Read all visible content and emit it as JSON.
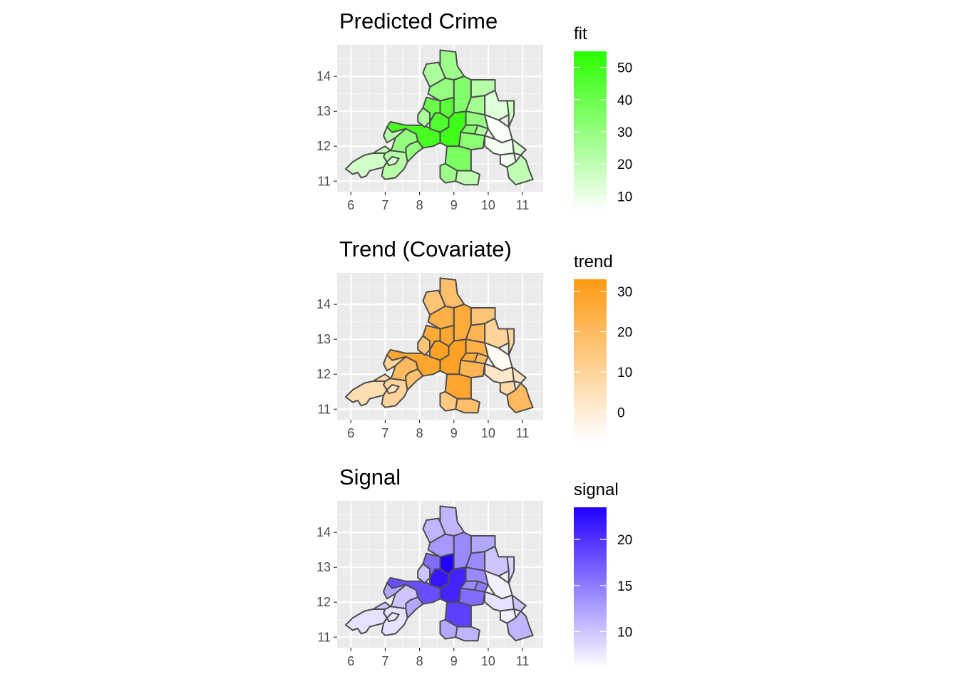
{
  "chart_data": [
    {
      "type": "choropleth",
      "title": "Predicted Crime",
      "fill_variable": "fit",
      "palette": {
        "low": "#ffffff",
        "high": "#2aff00"
      },
      "legend": {
        "title": "fit",
        "range": [
          5,
          55
        ],
        "ticks": [
          10,
          20,
          30,
          40,
          50
        ]
      },
      "x_axis": {
        "range": [
          5.6,
          11.6
        ],
        "ticks": [
          6,
          7,
          8,
          9,
          10,
          11
        ]
      },
      "y_axis": {
        "range": [
          10.7,
          14.9
        ],
        "ticks": [
          11,
          12,
          13,
          14
        ]
      },
      "regions": [
        {
          "id": "r01",
          "value": 22
        },
        {
          "id": "r02",
          "value": 16
        },
        {
          "id": "r03",
          "value": 20
        },
        {
          "id": "r04",
          "value": 14
        },
        {
          "id": "r05",
          "value": 30
        },
        {
          "id": "r06",
          "value": 48
        },
        {
          "id": "r07",
          "value": 30
        },
        {
          "id": "r08",
          "value": 22
        },
        {
          "id": "r09",
          "value": 24
        },
        {
          "id": "r10",
          "value": 40
        },
        {
          "id": "r11",
          "value": 46
        },
        {
          "id": "r12",
          "value": 44
        },
        {
          "id": "r13",
          "value": 30
        },
        {
          "id": "r14",
          "value": 34
        },
        {
          "id": "r15",
          "value": 50
        },
        {
          "id": "r16",
          "value": 28
        },
        {
          "id": "r17",
          "value": 24
        },
        {
          "id": "r18",
          "value": 22
        },
        {
          "id": "r19",
          "value": 12
        },
        {
          "id": "r20",
          "value": 26
        },
        {
          "id": "r21",
          "value": 30
        },
        {
          "id": "r22",
          "value": 34
        },
        {
          "id": "r23",
          "value": 24
        },
        {
          "id": "r24",
          "value": 32
        },
        {
          "id": "r25",
          "value": 36
        },
        {
          "id": "r26",
          "value": 28
        },
        {
          "id": "r27",
          "value": 20
        },
        {
          "id": "r28",
          "value": 6
        },
        {
          "id": "r29",
          "value": 18
        },
        {
          "id": "r30",
          "value": 8
        },
        {
          "id": "r31",
          "value": 14
        },
        {
          "id": "r32",
          "value": 8
        },
        {
          "id": "r33",
          "value": 20
        }
      ]
    },
    {
      "type": "choropleth",
      "title": "Trend (Covariate)",
      "fill_variable": "trend",
      "palette": {
        "low": "#ffffff",
        "high": "#ff9912"
      },
      "legend": {
        "title": "trend",
        "range": [
          -7,
          33
        ],
        "ticks": [
          0,
          10,
          20,
          30
        ]
      },
      "x_axis": {
        "range": [
          5.6,
          11.6
        ],
        "ticks": [
          6,
          7,
          8,
          9,
          10,
          11
        ]
      },
      "y_axis": {
        "range": [
          10.7,
          14.9
        ],
        "ticks": [
          11,
          12,
          13,
          14
        ]
      },
      "regions": [
        {
          "id": "r01",
          "value": 10
        },
        {
          "id": "r02",
          "value": 6
        },
        {
          "id": "r03",
          "value": 8
        },
        {
          "id": "r04",
          "value": 4
        },
        {
          "id": "r05",
          "value": 18
        },
        {
          "id": "r06",
          "value": 28
        },
        {
          "id": "r07",
          "value": 20
        },
        {
          "id": "r08",
          "value": 10
        },
        {
          "id": "r09",
          "value": 16
        },
        {
          "id": "r10",
          "value": 26
        },
        {
          "id": "r11",
          "value": 30
        },
        {
          "id": "r12",
          "value": 28
        },
        {
          "id": "r13",
          "value": 24
        },
        {
          "id": "r14",
          "value": 26
        },
        {
          "id": "r15",
          "value": 30
        },
        {
          "id": "r16",
          "value": 18
        },
        {
          "id": "r17",
          "value": 16
        },
        {
          "id": "r18",
          "value": 16
        },
        {
          "id": "r19",
          "value": 10
        },
        {
          "id": "r20",
          "value": 22
        },
        {
          "id": "r21",
          "value": 24
        },
        {
          "id": "r22",
          "value": 26
        },
        {
          "id": "r23",
          "value": 20
        },
        {
          "id": "r24",
          "value": 22
        },
        {
          "id": "r25",
          "value": 28
        },
        {
          "id": "r26",
          "value": 14
        },
        {
          "id": "r27",
          "value": 18
        },
        {
          "id": "r28",
          "value": -5
        },
        {
          "id": "r29",
          "value": 10
        },
        {
          "id": "r30",
          "value": 2
        },
        {
          "id": "r31",
          "value": 4
        },
        {
          "id": "r32",
          "value": 8
        },
        {
          "id": "r33",
          "value": 20
        }
      ]
    },
    {
      "type": "choropleth",
      "title": "Signal",
      "fill_variable": "signal",
      "palette": {
        "low": "#ffffff",
        "high": "#2200ff"
      },
      "legend": {
        "title": "signal",
        "range": [
          6,
          23.5
        ],
        "ticks": [
          10,
          15,
          20
        ]
      },
      "x_axis": {
        "range": [
          5.6,
          11.6
        ],
        "ticks": [
          6,
          7,
          8,
          9,
          10,
          11
        ]
      },
      "y_axis": {
        "range": [
          10.7,
          14.9
        ],
        "ticks": [
          11,
          12,
          13,
          14
        ]
      },
      "regions": [
        {
          "id": "r01",
          "value": 8
        },
        {
          "id": "r02",
          "value": 8
        },
        {
          "id": "r03",
          "value": 10
        },
        {
          "id": "r04",
          "value": 8
        },
        {
          "id": "r05",
          "value": 12
        },
        {
          "id": "r06",
          "value": 18
        },
        {
          "id": "r07",
          "value": 10
        },
        {
          "id": "r08",
          "value": 12
        },
        {
          "id": "r09",
          "value": 10
        },
        {
          "id": "r10",
          "value": 16
        },
        {
          "id": "r11",
          "value": 22
        },
        {
          "id": "r12",
          "value": 24
        },
        {
          "id": "r13",
          "value": 13
        },
        {
          "id": "r14",
          "value": 14
        },
        {
          "id": "r15",
          "value": 21
        },
        {
          "id": "r16",
          "value": 11
        },
        {
          "id": "r17",
          "value": 11
        },
        {
          "id": "r18",
          "value": 12
        },
        {
          "id": "r19",
          "value": 10
        },
        {
          "id": "r20",
          "value": 14
        },
        {
          "id": "r21",
          "value": 14
        },
        {
          "id": "r22",
          "value": 14
        },
        {
          "id": "r23",
          "value": 15
        },
        {
          "id": "r24",
          "value": 16
        },
        {
          "id": "r25",
          "value": 19
        },
        {
          "id": "r26",
          "value": 12
        },
        {
          "id": "r27",
          "value": 11
        },
        {
          "id": "r28",
          "value": 7
        },
        {
          "id": "r29",
          "value": 9
        },
        {
          "id": "r30",
          "value": 8
        },
        {
          "id": "r31",
          "value": 10
        },
        {
          "id": "r32",
          "value": 7
        },
        {
          "id": "r33",
          "value": 11
        }
      ]
    }
  ]
}
